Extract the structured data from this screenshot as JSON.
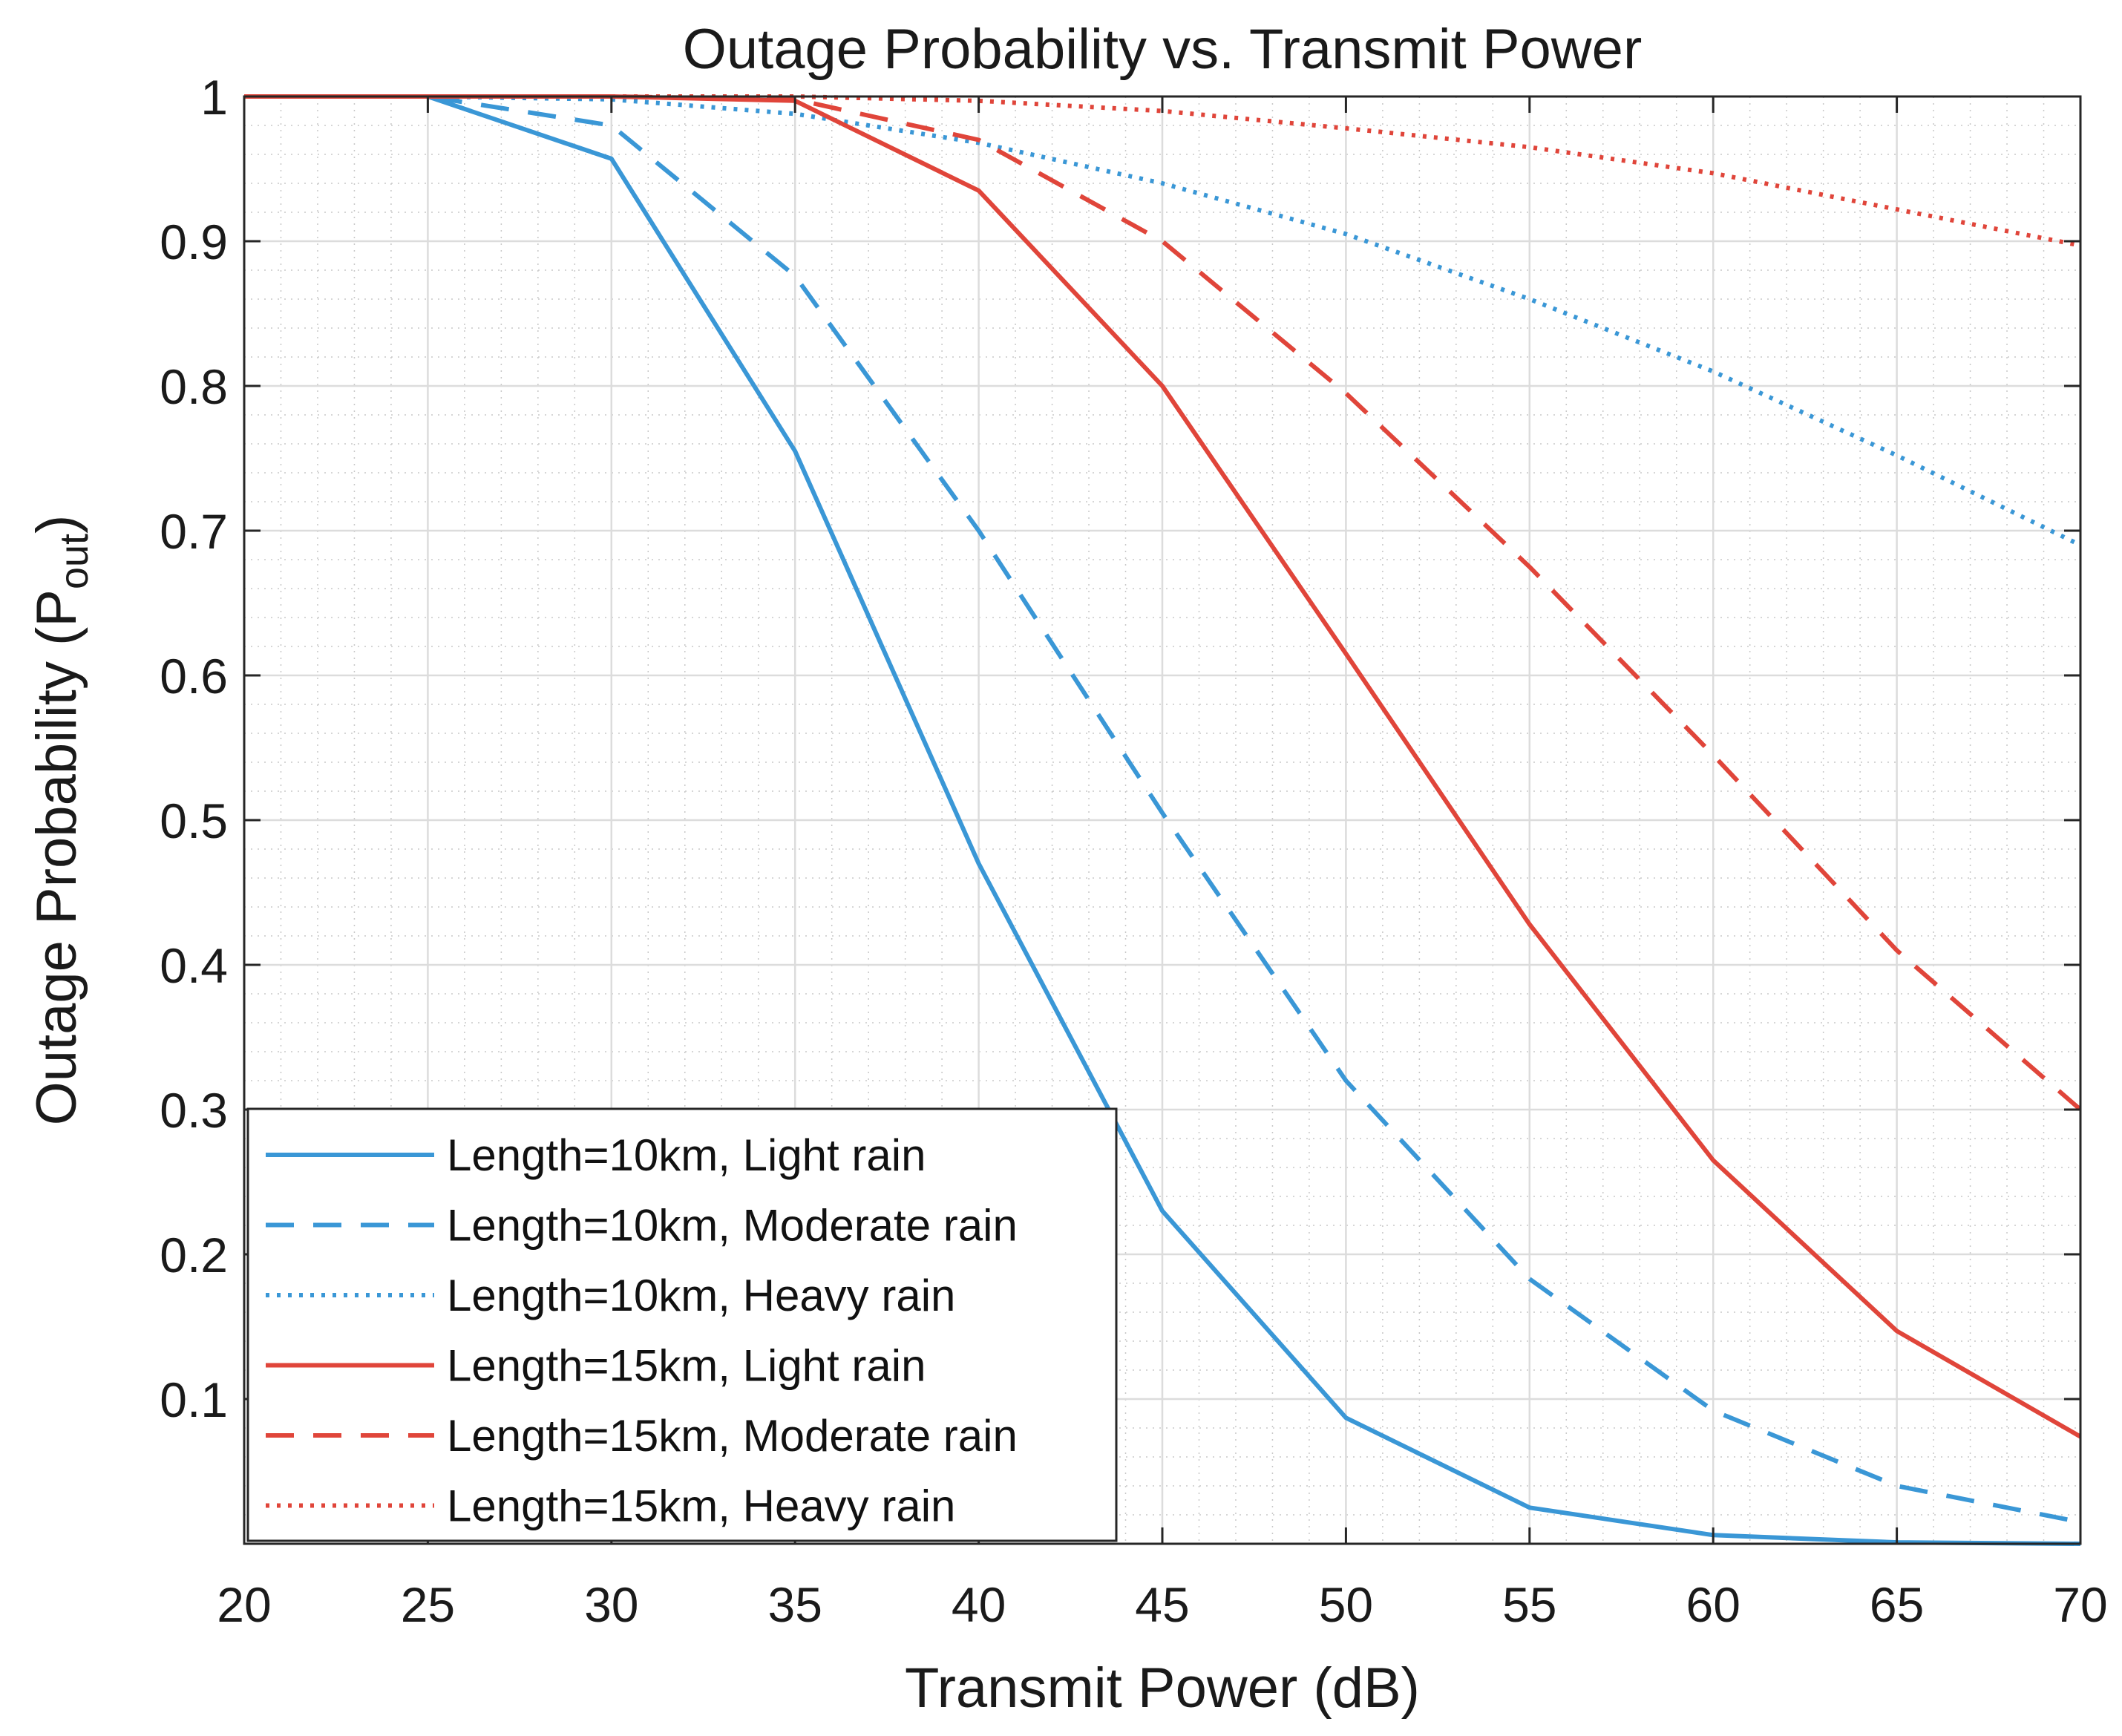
{
  "chart_data": {
    "type": "line",
    "title": "Outage Probability vs. Transmit Power",
    "xlabel": "Transmit Power (dB)",
    "ylabel_main": "Outage Probability (P",
    "ylabel_sub": "out",
    "ylabel_close": ")",
    "xlim": [
      20,
      70
    ],
    "ylim": [
      0,
      1
    ],
    "x_ticks": [
      "20",
      "25",
      "30",
      "35",
      "40",
      "45",
      "50",
      "55",
      "60",
      "65",
      "70"
    ],
    "y_ticks": [
      "0.1",
      "0.2",
      "0.3",
      "0.4",
      "0.5",
      "0.6",
      "0.7",
      "0.8",
      "0.9",
      "1"
    ],
    "grid": true,
    "minor_grid": true,
    "legend_position": "bottom-left",
    "x": [
      20,
      25,
      30,
      35,
      40,
      45,
      50,
      55,
      60,
      65,
      70
    ],
    "series": [
      {
        "name": "Length=10km, Light rain",
        "color": "#3a97d6",
        "style": "solid",
        "values": [
          1.0,
          1.0,
          0.957,
          0.755,
          0.47,
          0.23,
          0.087,
          0.025,
          0.006,
          0.001,
          0.0
        ]
      },
      {
        "name": "Length=10km, Moderate rain",
        "color": "#3a97d6",
        "style": "dashed",
        "values": [
          1.0,
          1.0,
          0.98,
          0.876,
          0.7,
          0.505,
          0.32,
          0.183,
          0.092,
          0.04,
          0.015
        ]
      },
      {
        "name": "Length=10km, Heavy rain",
        "color": "#3a97d6",
        "style": "dotted",
        "values": [
          1.0,
          1.0,
          0.998,
          0.988,
          0.968,
          0.94,
          0.905,
          0.86,
          0.81,
          0.752,
          0.69
        ]
      },
      {
        "name": "Length=15km, Light rain",
        "color": "#e0453a",
        "style": "solid",
        "values": [
          1.0,
          1.0,
          1.0,
          0.997,
          0.935,
          0.8,
          0.615,
          0.428,
          0.265,
          0.147,
          0.074
        ]
      },
      {
        "name": "Length=15km, Moderate rain",
        "color": "#e0453a",
        "style": "dashed",
        "values": [
          1.0,
          1.0,
          1.0,
          0.998,
          0.97,
          0.9,
          0.795,
          0.675,
          0.545,
          0.41,
          0.3
        ]
      },
      {
        "name": "Length=15km, Heavy rain",
        "color": "#e0453a",
        "style": "dotted",
        "values": [
          1.0,
          1.0,
          1.0,
          1.0,
          0.997,
          0.99,
          0.978,
          0.965,
          0.947,
          0.922,
          0.897
        ]
      }
    ]
  }
}
